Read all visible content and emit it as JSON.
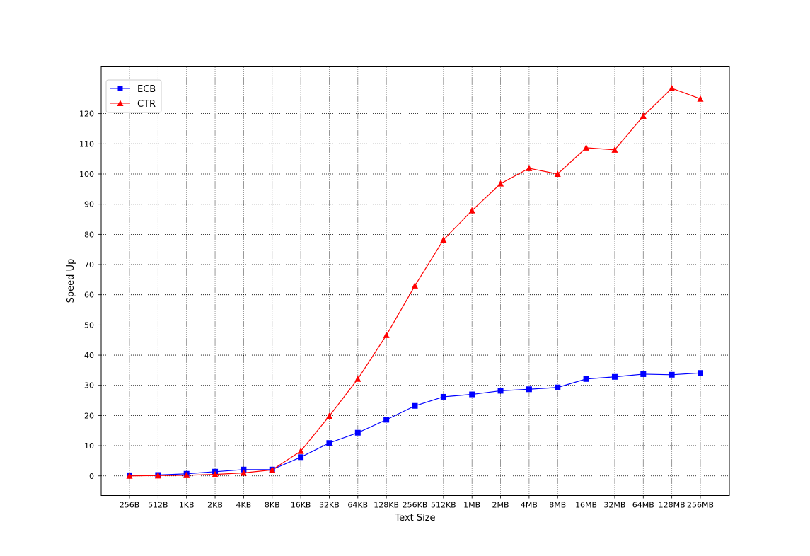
{
  "chart_data": {
    "type": "line",
    "title": "",
    "xlabel": "Text Size",
    "ylabel": "Speed Up",
    "categories": [
      "256B",
      "512B",
      "1KB",
      "2KB",
      "4KB",
      "8KB",
      "16KB",
      "32KB",
      "64KB",
      "128KB",
      "256KB",
      "512KB",
      "1MB",
      "2MB",
      "4MB",
      "8MB",
      "16MB",
      "32MB",
      "64MB",
      "128MB",
      "256MB"
    ],
    "yticks": [
      0,
      10,
      20,
      30,
      40,
      50,
      60,
      70,
      80,
      90,
      100,
      110,
      120
    ],
    "ylim": [
      -6.5,
      135.5
    ],
    "grid": true,
    "legend_position": "top-left",
    "series": [
      {
        "name": "ECB",
        "color": "#0000ff",
        "marker": "square",
        "values": [
          0.2,
          0.3,
          0.7,
          1.4,
          2.1,
          2.1,
          6.2,
          10.9,
          14.3,
          18.6,
          23.2,
          26.2,
          27.0,
          28.2,
          28.7,
          29.3,
          32.1,
          32.8,
          33.7,
          33.5,
          34.1
        ]
      },
      {
        "name": "CTR",
        "color": "#ff0000",
        "marker": "triangle",
        "values": [
          0.0,
          0.1,
          0.2,
          0.5,
          1.0,
          2.0,
          8.2,
          19.8,
          32.1,
          46.6,
          63.0,
          78.2,
          87.9,
          96.8,
          101.9,
          100.0,
          108.7,
          108.0,
          119.2,
          128.4,
          124.9
        ]
      }
    ]
  }
}
